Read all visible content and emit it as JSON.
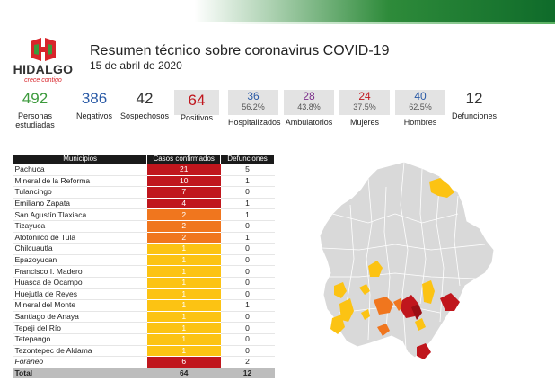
{
  "header": {
    "title": "Resumen técnico sobre coronavirus COVID-19",
    "date": "15 de abril de 2020",
    "logo": {
      "icon": "hidalgo-h-logo",
      "name": "HIDALGO",
      "tagline": "crece contigo"
    }
  },
  "colors": {
    "dark_red": "#c0161d",
    "orange": "#f0761e",
    "yellow": "#fcc313",
    "green_num": "#3c9a3c",
    "blue_num": "#2a5aa6",
    "red_num": "#c0161d",
    "purple_num": "#7b2d8a"
  },
  "stats": [
    {
      "value": "492",
      "label": "Personas estudiadas",
      "color": "#3c9a3c"
    },
    {
      "value": "386",
      "label": "Negativos",
      "color": "#2a5aa6"
    },
    {
      "value": "42",
      "label": "Sospechosos",
      "color": "#333333"
    },
    {
      "value": "64",
      "label": "Positivos",
      "color": "#c0161d"
    },
    {
      "value": "36",
      "pct": "56.2%",
      "label": "Hospitalizados",
      "color": "#2a5aa6"
    },
    {
      "value": "28",
      "pct": "43.8%",
      "label": "Ambulatorios",
      "color": "#7b2d8a"
    },
    {
      "value": "24",
      "pct": "37.5%",
      "label": "Mujeres",
      "color": "#c0161d"
    },
    {
      "value": "40",
      "pct": "62.5%",
      "label": "Hombres",
      "color": "#2a5aa6"
    },
    {
      "value": "12",
      "label": "Defunciones",
      "color": "#333333"
    }
  ],
  "table": {
    "headers": [
      "Municipios",
      "Casos confirmados",
      "Defunciones"
    ],
    "rows": [
      {
        "name": "Pachuca",
        "cases": "21",
        "deaths": "5",
        "level": "dark_red"
      },
      {
        "name": "Mineral de la Reforma",
        "cases": "10",
        "deaths": "1",
        "level": "dark_red"
      },
      {
        "name": "Tulancingo",
        "cases": "7",
        "deaths": "0",
        "level": "dark_red"
      },
      {
        "name": "Emiliano Zapata",
        "cases": "4",
        "deaths": "1",
        "level": "dark_red"
      },
      {
        "name": "San Agustín Tlaxiaca",
        "cases": "2",
        "deaths": "1",
        "level": "orange"
      },
      {
        "name": "Tizayuca",
        "cases": "2",
        "deaths": "0",
        "level": "orange"
      },
      {
        "name": "Atotonilco de Tula",
        "cases": "2",
        "deaths": "1",
        "level": "orange"
      },
      {
        "name": "Chilcuautla",
        "cases": "1",
        "deaths": "0",
        "level": "yellow"
      },
      {
        "name": "Epazoyucan",
        "cases": "1",
        "deaths": "0",
        "level": "yellow"
      },
      {
        "name": "Francisco I. Madero",
        "cases": "1",
        "deaths": "0",
        "level": "yellow"
      },
      {
        "name": "Huasca de Ocampo",
        "cases": "1",
        "deaths": "0",
        "level": "yellow"
      },
      {
        "name": "Huejutla de Reyes",
        "cases": "1",
        "deaths": "0",
        "level": "yellow"
      },
      {
        "name": "Mineral del Monte",
        "cases": "1",
        "deaths": "1",
        "level": "yellow"
      },
      {
        "name": "Santiago de Anaya",
        "cases": "1",
        "deaths": "0",
        "level": "yellow"
      },
      {
        "name": "Tepeji del Río",
        "cases": "1",
        "deaths": "0",
        "level": "yellow"
      },
      {
        "name": "Tetepango",
        "cases": "1",
        "deaths": "0",
        "level": "yellow"
      },
      {
        "name": "Tezontepec de Aldama",
        "cases": "1",
        "deaths": "0",
        "level": "yellow"
      },
      {
        "name": "Foráneo",
        "cases": "6",
        "deaths": "2",
        "level": "dark_red",
        "italic": true
      }
    ],
    "total": {
      "label": "Total",
      "cases": "64",
      "deaths": "12"
    }
  },
  "map": {
    "name": "hidalgo-municipalities-map"
  }
}
